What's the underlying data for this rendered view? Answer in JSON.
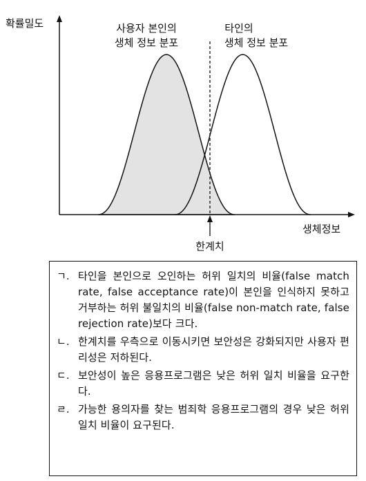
{
  "diagram": {
    "y_axis_label": "확률밀도",
    "x_axis_label": "생체정보",
    "genuine_label": [
      "사용자 본인의",
      "생체 정보 분포"
    ],
    "impostor_label": [
      "타인의",
      "생체 정보 분포"
    ],
    "threshold_label": "한계치",
    "colors": {
      "genuine_fill": "#e3e3e3",
      "line": "#111111"
    }
  },
  "statements": [
    {
      "marker": "ㄱ.",
      "text": "타인을 본인으로 오인하는 허위 일치의 비율(false match rate, false acceptance rate)이 본인을 인식하지 못하고 거부하는 허위 불일치의 비율(false non-match rate, false rejection rate)보다 크다."
    },
    {
      "marker": "ㄴ.",
      "text": "한계치를 우측으로 이동시키면 보안성은 강화되지만 사용자 편리성은 저하된다."
    },
    {
      "marker": "ㄷ.",
      "text": "보안성이 높은 응용프로그램은 낮은 허위 일치 비율을 요구한다."
    },
    {
      "marker": "ㄹ.",
      "text": "가능한 용의자를 찾는 범죄학 응용프로그램의 경우 낮은 허위 일치 비율이 요구된다."
    }
  ]
}
